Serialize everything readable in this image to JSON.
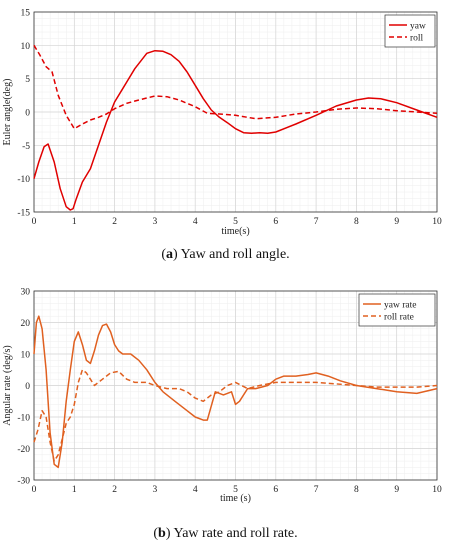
{
  "chart_data": [
    {
      "type": "line",
      "title": "",
      "xlabel": "time(s)",
      "ylabel": "Euler angle(deg)",
      "xlim": [
        0,
        10
      ],
      "ylim": [
        -15,
        15
      ],
      "xticks": [
        0,
        1,
        2,
        3,
        4,
        5,
        6,
        7,
        8,
        9,
        10
      ],
      "yticks": [
        -15,
        -10,
        -5,
        0,
        5,
        10,
        15
      ],
      "grid": true,
      "legend": "top-right",
      "caption_tag": "a",
      "caption_text": " Yaw and roll angle.",
      "series": [
        {
          "name": "yaw",
          "color": "#e00000",
          "dash": "solid",
          "x": [
            0,
            0.12,
            0.25,
            0.35,
            0.5,
            0.65,
            0.8,
            0.9,
            0.97,
            1.05,
            1.2,
            1.4,
            1.6,
            1.8,
            2.0,
            2.2,
            2.5,
            2.8,
            3.0,
            3.2,
            3.4,
            3.6,
            3.8,
            4.0,
            4.2,
            4.4,
            4.6,
            4.8,
            5.0,
            5.2,
            5.4,
            5.6,
            5.8,
            6.0,
            6.5,
            7.0,
            7.5,
            8.0,
            8.3,
            8.6,
            9.0,
            9.5,
            10.0
          ],
          "y": [
            -10,
            -7.5,
            -5.2,
            -4.8,
            -7.5,
            -11.5,
            -14.2,
            -14.7,
            -14.5,
            -13.0,
            -10.5,
            -8.5,
            -5.0,
            -1.5,
            1.5,
            3.5,
            6.5,
            8.8,
            9.2,
            9.1,
            8.6,
            7.6,
            6.0,
            4.0,
            2.0,
            0.3,
            -0.8,
            -1.6,
            -2.5,
            -3.1,
            -3.2,
            -3.1,
            -3.2,
            -3.0,
            -1.8,
            -0.5,
            0.9,
            1.8,
            2.1,
            2.0,
            1.4,
            0.3,
            -0.8
          ]
        },
        {
          "name": "roll",
          "color": "#e00000",
          "dash": "dashed",
          "x": [
            0,
            0.15,
            0.3,
            0.45,
            0.6,
            0.8,
            1.0,
            1.2,
            1.4,
            1.6,
            1.8,
            2.0,
            2.3,
            2.6,
            3.0,
            3.3,
            3.6,
            4.0,
            4.3,
            4.6,
            5.0,
            5.5,
            6.0,
            6.5,
            7.0,
            7.5,
            8.0,
            8.5,
            9.0,
            9.5,
            10.0
          ],
          "y": [
            10,
            8.5,
            6.8,
            6.0,
            2.5,
            -0.5,
            -2.5,
            -1.8,
            -1.2,
            -0.8,
            -0.3,
            0.5,
            1.3,
            1.8,
            2.4,
            2.3,
            1.8,
            0.8,
            -0.2,
            -0.3,
            -0.5,
            -1.0,
            -0.8,
            -0.3,
            0.0,
            0.4,
            0.6,
            0.5,
            0.2,
            0.0,
            -0.2
          ]
        }
      ]
    },
    {
      "type": "line",
      "title": "",
      "xlabel": "time (s)",
      "ylabel": "Angular rate (deg/s)",
      "xlim": [
        0,
        10
      ],
      "ylim": [
        -30,
        30
      ],
      "xticks": [
        0,
        1,
        2,
        3,
        4,
        5,
        6,
        7,
        8,
        9,
        10
      ],
      "yticks": [
        -30,
        -20,
        -10,
        0,
        10,
        20,
        30
      ],
      "grid": true,
      "legend": "top-right",
      "caption_tag": "b",
      "caption_text": " Yaw rate and roll rate.",
      "series": [
        {
          "name": "yaw rate",
          "color": "#e06020",
          "dash": "solid",
          "x": [
            0,
            0.06,
            0.12,
            0.2,
            0.3,
            0.4,
            0.5,
            0.6,
            0.7,
            0.8,
            0.9,
            1.0,
            1.1,
            1.2,
            1.3,
            1.4,
            1.5,
            1.6,
            1.7,
            1.8,
            1.9,
            2.0,
            2.1,
            2.2,
            2.4,
            2.6,
            2.8,
            3.0,
            3.2,
            3.5,
            3.8,
            4.0,
            4.2,
            4.3,
            4.5,
            4.7,
            4.9,
            5.0,
            5.1,
            5.3,
            5.5,
            5.8,
            6.0,
            6.2,
            6.5,
            6.8,
            7.0,
            7.3,
            7.6,
            8.0,
            8.5,
            9.0,
            9.5,
            10.0
          ],
          "y": [
            10,
            20,
            22,
            18,
            5,
            -15,
            -25,
            -26,
            -18,
            -5,
            5,
            14,
            17,
            13,
            8,
            7,
            11,
            16,
            19,
            19.5,
            17,
            13,
            11,
            10,
            10,
            8,
            5,
            1,
            -2,
            -5,
            -8,
            -10,
            -11,
            -11,
            -2,
            -3,
            -2,
            -6,
            -5,
            -1,
            -1,
            0,
            2,
            3,
            3,
            3.5,
            4,
            3,
            1.5,
            0,
            -1,
            -2,
            -2.5,
            -1
          ]
        },
        {
          "name": "roll rate",
          "color": "#e06020",
          "dash": "dashed",
          "x": [
            0,
            0.1,
            0.2,
            0.3,
            0.4,
            0.5,
            0.6,
            0.7,
            0.8,
            0.9,
            1.0,
            1.1,
            1.2,
            1.3,
            1.4,
            1.5,
            1.7,
            1.9,
            2.1,
            2.3,
            2.5,
            2.8,
            3.0,
            3.3,
            3.6,
            3.8,
            4.0,
            4.2,
            4.4,
            4.6,
            4.8,
            5.0,
            5.3,
            5.6,
            6.0,
            6.5,
            7.0,
            7.5,
            8.0,
            8.5,
            9.0,
            9.5,
            10.0
          ],
          "y": [
            -18,
            -14,
            -8,
            -10,
            -18,
            -24,
            -22,
            -17,
            -12,
            -10,
            -6,
            1,
            5,
            4,
            2,
            0,
            2,
            4,
            4.5,
            2,
            1,
            1,
            0,
            -1,
            -1,
            -2,
            -4,
            -5,
            -3,
            -2,
            0,
            1,
            -1,
            0,
            1,
            1,
            1,
            0.5,
            0,
            -0.5,
            -0.5,
            -0.5,
            0
          ]
        }
      ]
    }
  ]
}
